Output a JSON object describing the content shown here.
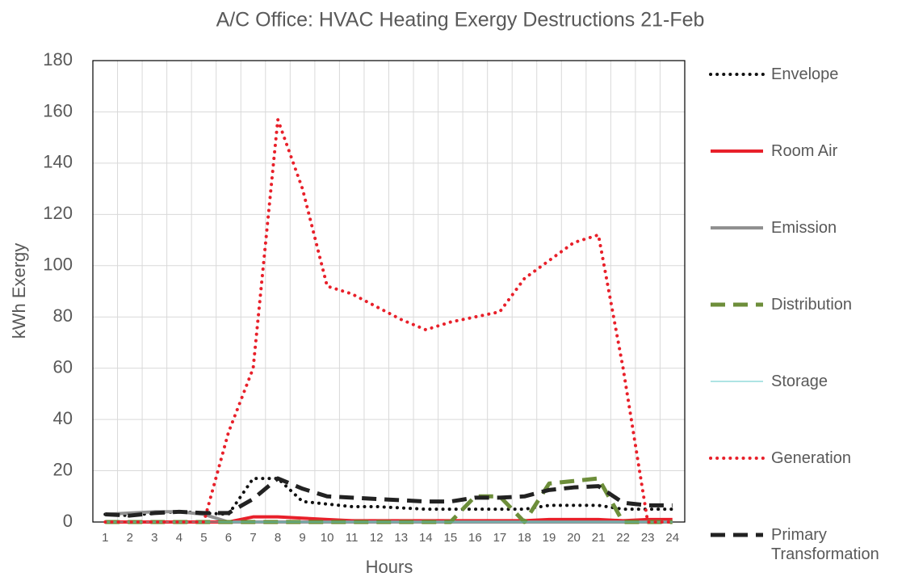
{
  "chart_data": {
    "type": "line",
    "title": "A/C Office: HVAC Heating Exergy Destructions 21-Feb",
    "x_label": "Hours",
    "y_label": "kWh Exergy",
    "categories": [
      "1",
      "2",
      "3",
      "4",
      "5",
      "6",
      "7",
      "8",
      "9",
      "10",
      "11",
      "12",
      "13",
      "14",
      "15",
      "16",
      "17",
      "18",
      "19",
      "20",
      "21",
      "22",
      "23",
      "24"
    ],
    "ylim": [
      0,
      180
    ],
    "yticks": [
      0,
      20,
      40,
      60,
      80,
      100,
      120,
      140,
      160,
      180
    ],
    "grid": true,
    "legend": "right",
    "series": [
      {
        "name": "Envelope",
        "color": "#111111",
        "style": "dotted",
        "values": [
          3,
          2.5,
          3.5,
          4,
          3.5,
          3,
          17,
          17,
          8,
          7,
          6,
          6,
          5.5,
          5,
          5,
          5,
          5,
          5,
          6.5,
          6.5,
          6.5,
          5,
          5,
          5
        ]
      },
      {
        "name": "Room Air",
        "color": "#e8202a",
        "style": "solid",
        "values": [
          0,
          0,
          0,
          0,
          0,
          0,
          2,
          2,
          1.5,
          1,
          0.5,
          0.5,
          0.5,
          0.5,
          0.5,
          0.5,
          0.5,
          0.5,
          1,
          1,
          1,
          0.5,
          1,
          1
        ]
      },
      {
        "name": "Emission",
        "color": "#909090",
        "style": "solid",
        "values": [
          3,
          3.5,
          4,
          4,
          3,
          0,
          0,
          0,
          0,
          0,
          0,
          0,
          0,
          0,
          0,
          0,
          0,
          0,
          0,
          0,
          0,
          0,
          0,
          0
        ]
      },
      {
        "name": "Distribution",
        "color": "#6d8e3a",
        "style": "dashed",
        "values": [
          0,
          0,
          0,
          0,
          0,
          0,
          0,
          0,
          0,
          0,
          0,
          0,
          0,
          0,
          0,
          10,
          10,
          0,
          15,
          16,
          17,
          0,
          0,
          0
        ]
      },
      {
        "name": "Storage",
        "color": "#5cc8c8",
        "style": "thin",
        "values": [
          0,
          0,
          0,
          0,
          0,
          0,
          0,
          0,
          0,
          0,
          0,
          0,
          0,
          0,
          0,
          0,
          0,
          0,
          0,
          0,
          0,
          0,
          0,
          0
        ]
      },
      {
        "name": "Generation",
        "color": "#e8202a",
        "style": "dotted",
        "values": [
          0,
          0,
          0,
          0,
          0,
          35,
          60,
          157,
          130,
          92,
          89,
          84,
          79,
          75,
          78,
          80,
          82,
          95,
          102,
          109,
          112,
          60,
          0,
          0
        ]
      },
      {
        "name": "Primary Transformation",
        "color": "#222222",
        "style": "dashed",
        "values": [
          3,
          2.5,
          3.5,
          4,
          3.5,
          3.5,
          9,
          17,
          13,
          10,
          9.5,
          9,
          8.5,
          8,
          8,
          9.5,
          9.5,
          10,
          12.5,
          13.5,
          14,
          7.5,
          6.5,
          6.5
        ]
      }
    ]
  }
}
